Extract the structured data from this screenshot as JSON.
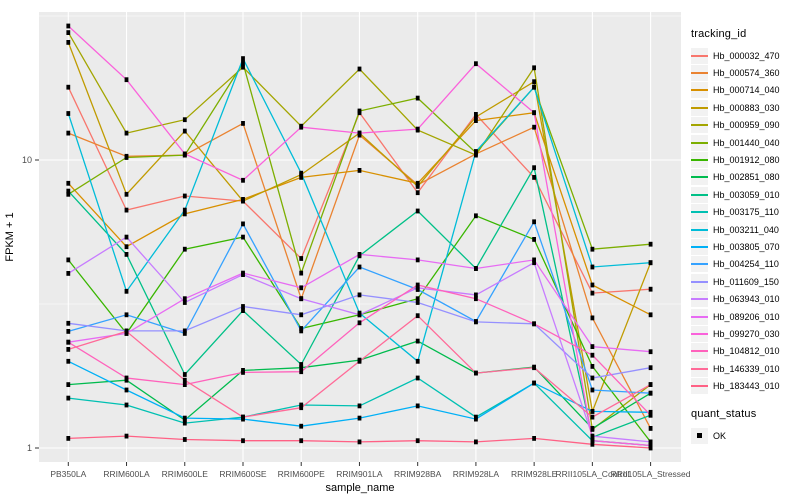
{
  "figure": {
    "panel_bg": "#EBEBEB",
    "grid_color": "#FFFFFF",
    "axis_text_color": "#4D4D4D",
    "tick_color": "#333333",
    "point_color": "#000000"
  },
  "legend": {
    "tracking_title": "tracking_id",
    "quant_title": "quant_status",
    "quant_items": [
      {
        "label": "OK",
        "shape": "square",
        "color": "#000000"
      }
    ]
  },
  "chart_data": {
    "type": "line",
    "title": "",
    "xlabel": "sample_name",
    "ylabel": "FPKM + 1",
    "y_scale": "log10",
    "y_ticks": [
      1,
      10
    ],
    "y_minor_ticks": [
      3.162,
      31.62
    ],
    "ylim": [
      0.9,
      33
    ],
    "grid": true,
    "legend_position": "right",
    "point_shape": "square",
    "x_categories": [
      "PB350LA",
      "RRIM600LA",
      "RRIM600LE",
      "RRIM600SE",
      "RRIM600PE",
      "RRIM901LA",
      "RRIM928BA",
      "RRIM928LA",
      "RRIM928LE",
      "RRII105LA_Control",
      "RRII105LA_Stressed"
    ],
    "series": [
      {
        "name": "Hb_000032_470",
        "color": "#F8766D",
        "values": [
          17.9,
          6.7,
          7.5,
          7.2,
          4.55,
          14.6,
          7.7,
          14.4,
          8.7,
          3.45,
          3.56
        ]
      },
      {
        "name": "Hb_000574_360",
        "color": "#EA8331",
        "values": [
          12.4,
          10.3,
          10.4,
          13.4,
          3.3,
          12.2,
          8.2,
          10.5,
          13.0,
          2.83,
          1.17
        ]
      },
      {
        "name": "Hb_000714_040",
        "color": "#D89000",
        "values": [
          8.3,
          5.0,
          6.5,
          7.3,
          8.7,
          9.2,
          8.3,
          13.7,
          14.6,
          3.68,
          2.9
        ]
      },
      {
        "name": "Hb_000883_030",
        "color": "#C09B00",
        "values": [
          25.6,
          7.6,
          12.6,
          7.2,
          8.9,
          12.4,
          8.1,
          14.1,
          18.7,
          1.34,
          4.4
        ]
      },
      {
        "name": "Hb_000959_090",
        "color": "#A3A500",
        "values": [
          27.7,
          12.4,
          13.8,
          21.0,
          13.1,
          20.7,
          12.7,
          10.4,
          20.9,
          1.16,
          1.66
        ]
      },
      {
        "name": "Hb_001440_040",
        "color": "#7CAE00",
        "values": [
          7.6,
          10.2,
          10.4,
          21.7,
          4.05,
          14.8,
          16.4,
          10.6,
          17.9,
          4.9,
          5.1
        ]
      },
      {
        "name": "Hb_001912_080",
        "color": "#39B600",
        "values": [
          4.5,
          2.5,
          4.9,
          5.4,
          2.6,
          2.9,
          3.3,
          6.4,
          5.3,
          1.92,
          1.05
        ]
      },
      {
        "name": "Hb_002851_080",
        "color": "#00BB4E",
        "values": [
          1.66,
          1.72,
          1.25,
          1.86,
          1.9,
          2.02,
          2.35,
          1.82,
          1.91,
          1.17,
          1.55
        ]
      },
      {
        "name": "Hb_003059_010",
        "color": "#00C087",
        "values": [
          7.8,
          4.7,
          1.8,
          3.0,
          1.95,
          4.65,
          6.65,
          4.2,
          9.4,
          1.09,
          1.3
        ]
      },
      {
        "name": "Hb_003175_110",
        "color": "#00C0B2",
        "values": [
          1.49,
          1.41,
          1.22,
          1.28,
          1.41,
          1.4,
          1.75,
          1.28,
          1.68,
          1.06,
          1.02
        ]
      },
      {
        "name": "Hb_003211_040",
        "color": "#00BCD8",
        "values": [
          14.5,
          3.5,
          6.7,
          22.5,
          9.0,
          2.94,
          2.0,
          10.7,
          17.9,
          4.25,
          4.4
        ]
      },
      {
        "name": "Hb_003805_070",
        "color": "#00B0F6",
        "values": [
          2.0,
          1.59,
          1.27,
          1.26,
          1.19,
          1.27,
          1.4,
          1.26,
          1.68,
          1.34,
          1.33
        ]
      },
      {
        "name": "Hb_004254_110",
        "color": "#35A2FF",
        "values": [
          2.54,
          2.9,
          2.5,
          6.0,
          2.55,
          4.25,
          3.55,
          2.75,
          6.1,
          1.59,
          1.55
        ]
      },
      {
        "name": "Hb_011609_150",
        "color": "#9590FF",
        "values": [
          2.71,
          2.55,
          2.55,
          3.1,
          2.9,
          3.4,
          3.2,
          2.74,
          2.7,
          1.75,
          1.9
        ]
      },
      {
        "name": "Hb_063943_010",
        "color": "#C77CFF",
        "values": [
          4.04,
          5.4,
          3.2,
          4.0,
          3.3,
          2.9,
          3.6,
          3.4,
          4.4,
          1.1,
          1.05
        ]
      },
      {
        "name": "Hb_089206_010",
        "color": "#E76BF3",
        "values": [
          2.33,
          2.5,
          3.3,
          4.05,
          3.6,
          4.7,
          4.5,
          4.2,
          4.5,
          2.25,
          2.16
        ]
      },
      {
        "name": "Hb_099270_030",
        "color": "#FA62DB",
        "values": [
          29.2,
          19.0,
          10.5,
          8.5,
          13.0,
          12.4,
          12.8,
          21.6,
          14.6,
          1.06,
          1.02
        ]
      },
      {
        "name": "Hb_104812_010",
        "color": "#FF62BC",
        "values": [
          2.33,
          1.75,
          1.66,
          1.83,
          1.84,
          2.72,
          3.68,
          3.3,
          2.7,
          2.1,
          1.3
        ]
      },
      {
        "name": "Hb_146339_010",
        "color": "#FF6A98",
        "values": [
          2.2,
          2.54,
          1.72,
          1.28,
          1.38,
          2.0,
          2.88,
          1.82,
          1.9,
          1.28,
          1.66
        ]
      },
      {
        "name": "Hb_183443_010",
        "color": "#FF6185",
        "values": [
          1.08,
          1.1,
          1.07,
          1.06,
          1.06,
          1.05,
          1.06,
          1.05,
          1.08,
          1.03,
          1.0
        ]
      }
    ]
  }
}
